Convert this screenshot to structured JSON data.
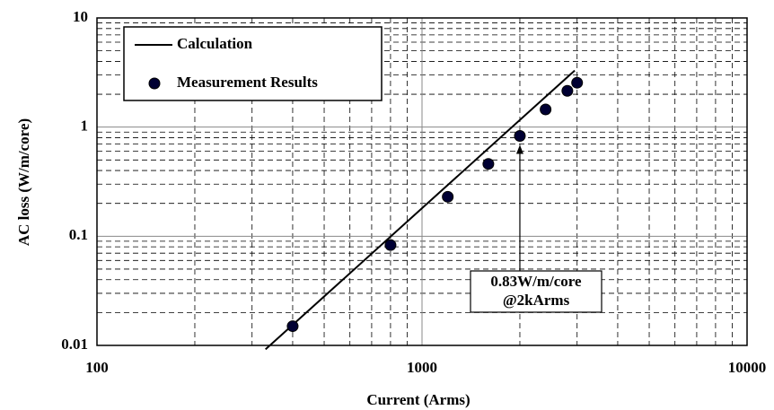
{
  "chart_data": {
    "type": "scatter",
    "xlabel": "Current (Arms)",
    "ylabel": "AC loss (W/m/core)",
    "xscale": "log",
    "yscale": "log",
    "grid": true,
    "legend": "upper left",
    "xlim": [
      100,
      10000
    ],
    "ylim": [
      0.01,
      10
    ],
    "xticks": [
      100,
      1000,
      10000
    ],
    "yticks": [
      0.01,
      0.1,
      1,
      10
    ],
    "series": [
      {
        "name": "Calculation",
        "kind": "line",
        "color": "#000000",
        "x": [
          330,
          2950
        ],
        "values": [
          0.0092,
          3.3
        ]
      },
      {
        "name": "Measurement Results",
        "kind": "marker",
        "color": "#000033",
        "x": [
          400,
          800,
          1200,
          1600,
          2000,
          2400,
          2800,
          3000
        ],
        "values": [
          0.015,
          0.083,
          0.23,
          0.46,
          0.83,
          1.45,
          2.15,
          2.55
        ]
      }
    ],
    "annotations": [
      {
        "text": [
          "0.83W/m/core",
          "@2kArms"
        ],
        "x": 2000,
        "y": 0.83
      }
    ]
  }
}
